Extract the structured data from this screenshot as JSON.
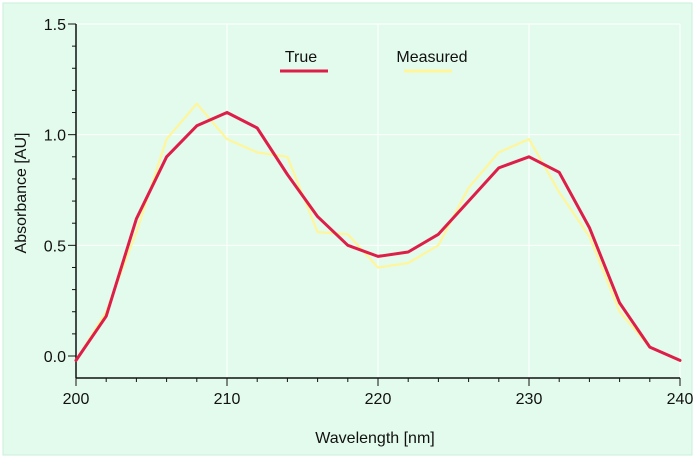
{
  "colors": {
    "background": "#ffffff",
    "plot_background": "#e3fbec",
    "grid": "#ffffff",
    "axis": "#111111",
    "true_series": "#dc1e48",
    "measured_series": "#fff59a"
  },
  "chart_data": {
    "type": "line",
    "title": "",
    "xlabel": "Wavelength [nm]",
    "ylabel": "Absorbance [AU]",
    "xlim": [
      200,
      240
    ],
    "ylim": [
      0,
      1.5
    ],
    "x_ticks": [
      200,
      210,
      220,
      230,
      240
    ],
    "x_tick_labels": [
      "200",
      "210",
      "220",
      "230",
      "240"
    ],
    "y_ticks": [
      0,
      0.5,
      1,
      1.5
    ],
    "y_tick_labels": [
      "0.0",
      "0.5",
      "1.0",
      "1.5"
    ],
    "grid": true,
    "legend_position": "top-center",
    "series": [
      {
        "name": "Measured",
        "color_key": "measured_series",
        "x": [
          200,
          202,
          204,
          206,
          208,
          210,
          212,
          214,
          216,
          218,
          220,
          222,
          224,
          226,
          228,
          230,
          232,
          234,
          236,
          238,
          240
        ],
        "y": [
          -0.02,
          0.2,
          0.56,
          0.98,
          1.14,
          0.98,
          0.92,
          0.9,
          0.56,
          0.55,
          0.4,
          0.42,
          0.5,
          0.76,
          0.92,
          0.98,
          0.74,
          0.54,
          0.2,
          0.04,
          -0.02
        ]
      },
      {
        "name": "True",
        "color_key": "true_series",
        "x": [
          200,
          202,
          204,
          206,
          208,
          210,
          212,
          214,
          216,
          218,
          220,
          222,
          224,
          226,
          228,
          230,
          232,
          234,
          236,
          238,
          240
        ],
        "y": [
          -0.02,
          0.18,
          0.62,
          0.9,
          1.04,
          1.1,
          1.03,
          0.82,
          0.63,
          0.5,
          0.45,
          0.47,
          0.55,
          0.7,
          0.85,
          0.9,
          0.83,
          0.58,
          0.24,
          0.04,
          -0.02
        ]
      }
    ]
  }
}
